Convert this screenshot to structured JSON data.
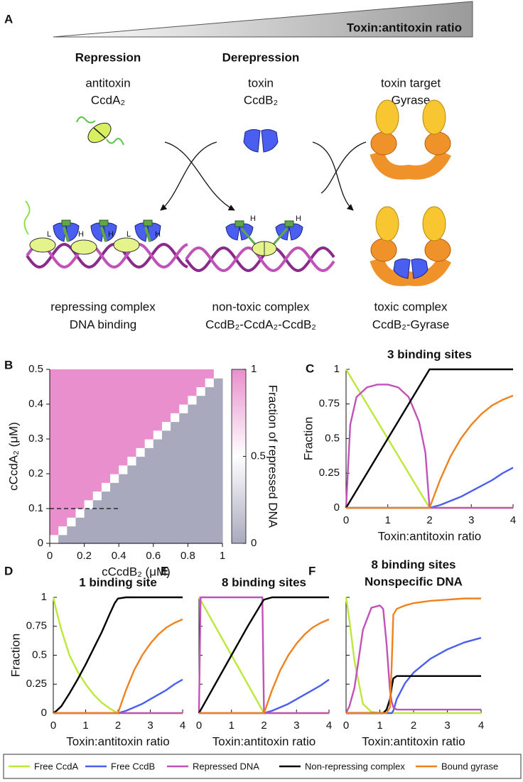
{
  "panel_a": {
    "label": "A",
    "ratio_label": "Toxin:antitoxin ratio",
    "columns": [
      {
        "heading": "Repression",
        "name": "antitoxin",
        "protein": "CcdA₂"
      },
      {
        "heading": "Derepression",
        "name": "toxin",
        "protein": "CcdB₂"
      },
      {
        "name": "toxin target",
        "protein": "Gyrase"
      }
    ],
    "site_labels": [
      "L",
      "H",
      "H",
      "L",
      "H",
      "H",
      "H"
    ],
    "complexes": [
      {
        "name": "repressing complex",
        "description": "DNA binding"
      },
      {
        "name": "non-toxic complex",
        "description": "CcdB₂-CcdA₂-CcdB₂"
      },
      {
        "name": "toxic complex",
        "description": "CcdB₂-Gyrase"
      }
    ]
  },
  "chart_data": [
    {
      "type": "heatmap",
      "panel_label": "B",
      "xlabel": "cCcdB₂ (μM)",
      "ylabel": "cCcdA₂ (μM)",
      "colorbar_label": "Fraction of repressed DNA",
      "xlim": [
        0,
        1
      ],
      "xticks": [
        0,
        0.2,
        0.4,
        0.6,
        0.8,
        1
      ],
      "ylim": [
        0,
        0.5
      ],
      "yticks": [
        0,
        0.1,
        0.2,
        0.3,
        0.4,
        0.5
      ],
      "clim": [
        0,
        1
      ],
      "cticks": [
        0,
        0.5,
        1
      ],
      "colors": [
        "#a9a9bd",
        "#ffffff",
        "#e98fcd"
      ],
      "dashed_line": {
        "x": [
          0,
          0.4
        ],
        "y": [
          0.1,
          0.1
        ]
      },
      "values": [
        [
          0.5,
          0,
          0,
          0,
          0,
          0,
          0,
          0,
          0,
          0,
          0,
          0,
          0,
          0,
          0,
          0,
          0,
          0,
          0,
          0
        ],
        [
          1,
          0.5,
          0,
          0,
          0,
          0,
          0,
          0,
          0,
          0,
          0,
          0,
          0,
          0,
          0,
          0,
          0,
          0,
          0,
          0
        ],
        [
          1,
          1,
          0.5,
          0,
          0,
          0,
          0,
          0,
          0,
          0,
          0,
          0,
          0,
          0,
          0,
          0,
          0,
          0,
          0,
          0
        ],
        [
          1,
          1,
          1,
          0.5,
          0,
          0,
          0,
          0,
          0,
          0,
          0,
          0,
          0,
          0,
          0,
          0,
          0,
          0,
          0,
          0
        ],
        [
          1,
          1,
          1,
          1,
          0.5,
          0,
          0,
          0,
          0,
          0,
          0,
          0,
          0,
          0,
          0,
          0,
          0,
          0,
          0,
          0
        ],
        [
          1,
          1,
          1,
          1,
          1,
          0.5,
          0,
          0,
          0,
          0,
          0,
          0,
          0,
          0,
          0,
          0,
          0,
          0,
          0,
          0
        ],
        [
          1,
          1,
          1,
          1,
          1,
          1,
          0.5,
          0,
          0,
          0,
          0,
          0,
          0,
          0,
          0,
          0,
          0,
          0,
          0,
          0
        ],
        [
          1,
          1,
          1,
          1,
          1,
          1,
          1,
          0.5,
          0,
          0,
          0,
          0,
          0,
          0,
          0,
          0,
          0,
          0,
          0,
          0
        ],
        [
          1,
          1,
          1,
          1,
          1,
          1,
          1,
          1,
          0.5,
          0,
          0,
          0,
          0,
          0,
          0,
          0,
          0,
          0,
          0,
          0
        ],
        [
          1,
          1,
          1,
          1,
          1,
          1,
          1,
          1,
          1,
          0.5,
          0,
          0,
          0,
          0,
          0,
          0,
          0,
          0,
          0,
          0
        ],
        [
          1,
          1,
          1,
          1,
          1,
          1,
          1,
          1,
          1,
          1,
          0.5,
          0,
          0,
          0,
          0,
          0,
          0,
          0,
          0,
          0
        ],
        [
          1,
          1,
          1,
          1,
          1,
          1,
          1,
          1,
          1,
          1,
          1,
          0.5,
          0,
          0,
          0,
          0,
          0,
          0,
          0,
          0
        ],
        [
          1,
          1,
          1,
          1,
          1,
          1,
          1,
          1,
          1,
          1,
          1,
          1,
          0.5,
          0,
          0,
          0,
          0,
          0,
          0,
          0
        ],
        [
          1,
          1,
          1,
          1,
          1,
          1,
          1,
          1,
          1,
          1,
          1,
          1,
          1,
          0.5,
          0,
          0,
          0,
          0,
          0,
          0
        ],
        [
          1,
          1,
          1,
          1,
          1,
          1,
          1,
          1,
          1,
          1,
          1,
          1,
          1,
          1,
          0.5,
          0,
          0,
          0,
          0,
          0
        ],
        [
          1,
          1,
          1,
          1,
          1,
          1,
          1,
          1,
          1,
          1,
          1,
          1,
          1,
          1,
          1,
          0.5,
          0,
          0,
          0,
          0
        ],
        [
          1,
          1,
          1,
          1,
          1,
          1,
          1,
          1,
          1,
          1,
          1,
          1,
          1,
          1,
          1,
          1,
          0.5,
          0,
          0,
          0
        ],
        [
          1,
          1,
          1,
          1,
          1,
          1,
          1,
          1,
          1,
          1,
          1,
          1,
          1,
          1,
          1,
          1,
          1,
          0.5,
          0,
          0
        ],
        [
          1,
          1,
          1,
          1,
          1,
          1,
          1,
          1,
          1,
          1,
          1,
          1,
          1,
          1,
          1,
          1,
          1,
          1,
          0.5,
          0
        ],
        [
          1,
          1,
          1,
          1,
          1,
          1,
          1,
          1,
          1,
          1,
          1,
          1,
          1,
          1,
          1,
          1,
          1,
          1,
          1,
          0.5
        ]
      ]
    },
    {
      "type": "line",
      "panel_label": "C",
      "title": "3 binding sites",
      "xlabel": "Toxin:antitoxin ratio",
      "ylabel": "Fraction",
      "xlim": [
        0,
        4
      ],
      "xticks": [
        0,
        1,
        2,
        3,
        4
      ],
      "ylim": [
        0,
        1
      ],
      "yticks": [
        0,
        0.25,
        0.5,
        0.75,
        1
      ],
      "x": [
        0,
        0.1,
        0.25,
        0.5,
        0.75,
        1,
        1.25,
        1.5,
        1.75,
        1.9,
        2,
        2.25,
        2.5,
        2.75,
        3,
        3.25,
        3.5,
        3.75,
        4
      ],
      "series": [
        {
          "name": "Free CcdA",
          "color": "#bde83a",
          "values": [
            1,
            0.95,
            0.875,
            0.75,
            0.625,
            0.5,
            0.375,
            0.25,
            0.125,
            0.05,
            0,
            0,
            0,
            0,
            0,
            0,
            0,
            0,
            0
          ]
        },
        {
          "name": "Free CcdB",
          "color": "#4a5ef0",
          "values": [
            0,
            0,
            0,
            0,
            0,
            0,
            0,
            0,
            0,
            0,
            0,
            0.02,
            0.05,
            0.08,
            0.12,
            0.16,
            0.2,
            0.25,
            0.29
          ]
        },
        {
          "name": "Repressed DNA",
          "color": "#c252b8",
          "values": [
            0,
            0.6,
            0.8,
            0.87,
            0.89,
            0.89,
            0.87,
            0.8,
            0.62,
            0.4,
            0,
            0,
            0,
            0,
            0,
            0,
            0,
            0,
            0
          ]
        },
        {
          "name": "Non-repressing complex",
          "color": "#000000",
          "values": [
            0,
            0.05,
            0.125,
            0.25,
            0.375,
            0.5,
            0.625,
            0.75,
            0.875,
            0.95,
            1,
            1,
            1,
            1,
            1,
            1,
            1,
            1,
            1
          ]
        },
        {
          "name": "Bound gyrase",
          "color": "#f0821e",
          "values": [
            0,
            0,
            0,
            0,
            0,
            0,
            0,
            0,
            0,
            0,
            0,
            0.2,
            0.37,
            0.5,
            0.6,
            0.68,
            0.74,
            0.78,
            0.81
          ]
        }
      ]
    },
    {
      "type": "line",
      "panel_label": "D",
      "title": "1 binding site",
      "xlabel": "Toxin:antitoxin ratio",
      "ylabel": "Fraction",
      "xlim": [
        0,
        4
      ],
      "xticks": [
        0,
        1,
        2,
        3,
        4
      ],
      "ylim": [
        0,
        1
      ],
      "yticks": [
        0,
        0.25,
        0.5,
        0.75,
        1
      ],
      "x": [
        0,
        0.1,
        0.25,
        0.5,
        0.75,
        1,
        1.25,
        1.5,
        1.75,
        1.9,
        2,
        2.25,
        2.5,
        2.75,
        3,
        3.25,
        3.5,
        3.75,
        4
      ],
      "series": [
        {
          "color": "#bde83a",
          "values": [
            1,
            0.88,
            0.72,
            0.5,
            0.36,
            0.25,
            0.16,
            0.09,
            0.04,
            0.015,
            0,
            0,
            0,
            0,
            0,
            0,
            0,
            0,
            0
          ]
        },
        {
          "color": "#4a5ef0",
          "values": [
            0,
            0,
            0,
            0,
            0,
            0,
            0,
            0,
            0,
            0,
            0,
            0.02,
            0.05,
            0.08,
            0.12,
            0.16,
            0.2,
            0.25,
            0.29
          ]
        },
        {
          "color": "#c252b8",
          "values": [
            0,
            0,
            0,
            0,
            0,
            0,
            0,
            0,
            0,
            0,
            0,
            0,
            0,
            0,
            0,
            0,
            0,
            0,
            0
          ]
        },
        {
          "color": "#000000",
          "values": [
            0,
            0.02,
            0.06,
            0.17,
            0.29,
            0.42,
            0.56,
            0.7,
            0.86,
            0.95,
            0.99,
            1,
            1,
            1,
            1,
            1,
            1,
            1,
            1
          ]
        },
        {
          "color": "#f0821e",
          "values": [
            0,
            0,
            0,
            0,
            0,
            0,
            0,
            0,
            0,
            0,
            0,
            0.2,
            0.37,
            0.5,
            0.6,
            0.68,
            0.74,
            0.78,
            0.81
          ]
        }
      ]
    },
    {
      "type": "line",
      "panel_label": "E",
      "title": "8 binding sites",
      "xlabel": "Toxin:antitoxin ratio",
      "xlim": [
        0,
        4
      ],
      "xticks": [
        0,
        1,
        2,
        3,
        4
      ],
      "ylim": [
        0,
        1
      ],
      "yticks": [
        0,
        0.25,
        0.5,
        0.75,
        1
      ],
      "x": [
        0,
        0.05,
        0.5,
        1,
        1.5,
        1.95,
        2,
        2.25,
        2.5,
        2.75,
        3,
        3.25,
        3.5,
        3.75,
        4
      ],
      "series": [
        {
          "color": "#bde83a",
          "values": [
            1,
            0.975,
            0.75,
            0.5,
            0.25,
            0.025,
            0,
            0,
            0,
            0,
            0,
            0,
            0,
            0,
            0
          ]
        },
        {
          "color": "#4a5ef0",
          "values": [
            0,
            0,
            0,
            0,
            0,
            0,
            0,
            0.02,
            0.05,
            0.08,
            0.12,
            0.16,
            0.2,
            0.24,
            0.29
          ]
        },
        {
          "color": "#c252b8",
          "values": [
            0,
            1,
            1,
            1,
            1,
            1,
            0,
            0,
            0,
            0,
            0,
            0,
            0,
            0,
            0
          ]
        },
        {
          "color": "#000000",
          "values": [
            0,
            0.025,
            0.25,
            0.5,
            0.75,
            0.96,
            0.98,
            1,
            1,
            1,
            1,
            1,
            1,
            1,
            1
          ]
        },
        {
          "color": "#f0821e",
          "values": [
            0,
            0,
            0,
            0,
            0,
            0,
            0,
            0.2,
            0.37,
            0.5,
            0.6,
            0.68,
            0.74,
            0.78,
            0.81
          ]
        }
      ]
    },
    {
      "type": "line",
      "panel_label": "F",
      "title": "8 binding sites",
      "subtitle": "Nonspecific DNA",
      "xlabel": "Toxin:antitoxin ratio",
      "xlim": [
        0,
        4
      ],
      "xticks": [
        0,
        1,
        2,
        3,
        4
      ],
      "ylim": [
        0,
        1
      ],
      "yticks": [
        0,
        0.25,
        0.5,
        0.75,
        1
      ],
      "x": [
        0,
        0.1,
        0.25,
        0.5,
        0.75,
        1,
        1.1,
        1.2,
        1.3,
        1.35,
        1.4,
        1.5,
        1.75,
        2,
        2.5,
        3,
        3.5,
        4
      ],
      "series": [
        {
          "color": "#bde83a",
          "values": [
            1,
            0.8,
            0.45,
            0.08,
            0.01,
            0,
            0,
            0,
            0,
            0,
            0,
            0,
            0,
            0,
            0,
            0,
            0,
            0
          ]
        },
        {
          "color": "#4a5ef0",
          "values": [
            0,
            0,
            0,
            0,
            0,
            0,
            0,
            0,
            0,
            0,
            0.02,
            0.12,
            0.26,
            0.35,
            0.47,
            0.55,
            0.61,
            0.65
          ]
        },
        {
          "color": "#c252b8",
          "values": [
            0,
            0.06,
            0.22,
            0.72,
            0.91,
            0.93,
            0.9,
            0.6,
            0.2,
            0.1,
            0.05,
            0.03,
            0.03,
            0.03,
            0.03,
            0.03,
            0.03,
            0.03
          ]
        },
        {
          "color": "#000000",
          "values": [
            0,
            0,
            0,
            0,
            0,
            0,
            0,
            0.03,
            0.12,
            0.22,
            0.3,
            0.32,
            0.32,
            0.32,
            0.32,
            0.32,
            0.32,
            0.32
          ]
        },
        {
          "color": "#f0821e",
          "values": [
            0,
            0,
            0,
            0,
            0,
            0,
            0,
            0,
            0.05,
            0.4,
            0.85,
            0.9,
            0.93,
            0.95,
            0.97,
            0.98,
            0.99,
            0.99
          ]
        }
      ]
    }
  ]
}
